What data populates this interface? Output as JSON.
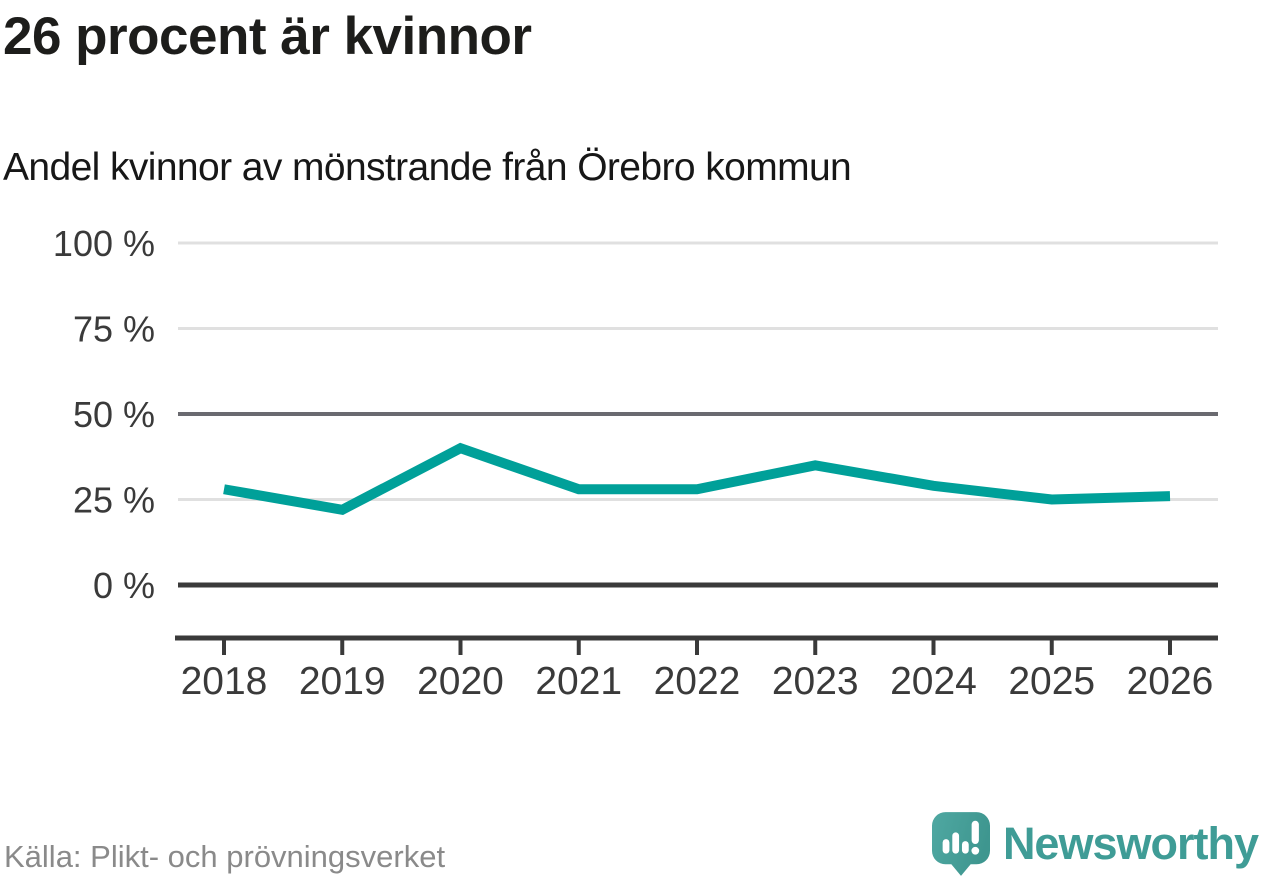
{
  "header": {
    "title": "26 procent är kvinnor",
    "subtitle": "Andel kvinnor av mönstrande från Örebro kommun"
  },
  "chart_data": {
    "type": "line",
    "x": [
      2018,
      2019,
      2020,
      2021,
      2022,
      2023,
      2024,
      2025,
      2026
    ],
    "series": [
      {
        "name": "Andel kvinnor av mönstrande från Örebro kommun",
        "values": [
          28,
          22,
          40,
          28,
          28,
          35,
          29,
          25,
          26
        ]
      }
    ],
    "title": "26 procent är kvinnor",
    "subtitle": "Andel kvinnor av mönstrande från Örebro kommun",
    "xlabel": "",
    "ylabel": "",
    "ylim": [
      0,
      100
    ],
    "yticks": [
      0,
      25,
      50,
      75,
      100
    ],
    "ytick_labels": [
      "0 %",
      "25 %",
      "50 %",
      "75 %",
      "100 %"
    ],
    "grid": "horizontal-only",
    "legend": "none"
  },
  "colors": {
    "line": "#00a099",
    "grid_light": "#e0e0e0",
    "grid_mid": "#6a6a70",
    "grid_zero": "#3a3a3a",
    "axis": "#3a3a3a",
    "tick_text": "#3a3a3a",
    "title_text": "#1d1d1b",
    "source_text": "#8a8a8a",
    "brand_teal": "#3f9c96",
    "icon_teal_light": "#4fa8a2",
    "icon_teal_dark": "#3e968f"
  },
  "footer": {
    "source": "Källa: Plikt- och prövningsverket",
    "brand": "Newsworthy",
    "logo_icon": "speech-bubble-bar-chart-exclamation-icon"
  }
}
